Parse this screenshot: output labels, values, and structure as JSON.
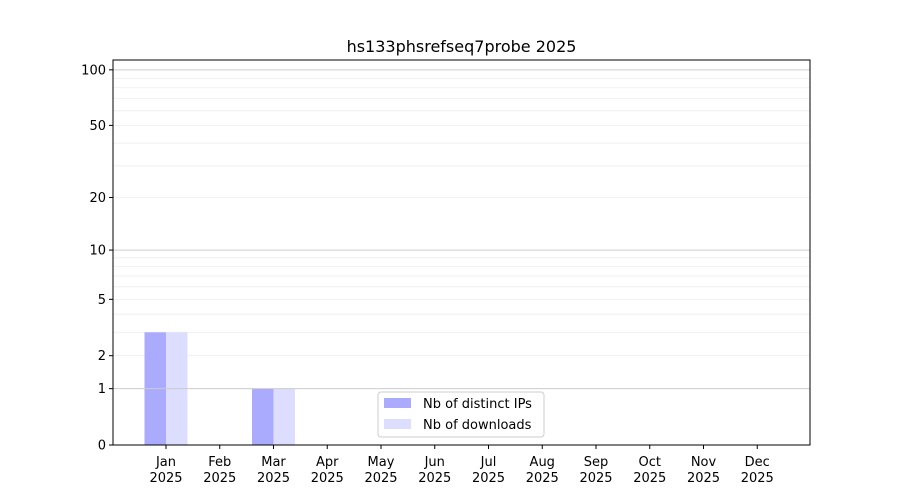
{
  "chart_data": {
    "type": "bar",
    "title": "hs133phsrefseq7probe 2025",
    "xlabel": "",
    "ylabel": "",
    "yscale": "log10(1+y)",
    "ylim": [
      0,
      113
    ],
    "yticks": [
      0,
      1,
      2,
      5,
      10,
      20,
      50,
      100
    ],
    "grid": true,
    "legend_position": "lower-center",
    "categories": [
      "Jan\n2025",
      "Feb\n2025",
      "Mar\n2025",
      "Apr\n2025",
      "May\n2025",
      "Jun\n2025",
      "Jul\n2025",
      "Aug\n2025",
      "Sep\n2025",
      "Oct\n2025",
      "Nov\n2025",
      "Dec\n2025"
    ],
    "series": [
      {
        "name": "Nb of distinct IPs",
        "color": "#aaaaff",
        "values": [
          3,
          0,
          1,
          0,
          0,
          0,
          0,
          0,
          0,
          0,
          0,
          0
        ]
      },
      {
        "name": "Nb of downloads",
        "color": "#ddddff",
        "values": [
          3,
          0,
          1,
          0,
          0,
          0,
          0,
          0,
          0,
          0,
          0,
          0
        ]
      }
    ]
  }
}
